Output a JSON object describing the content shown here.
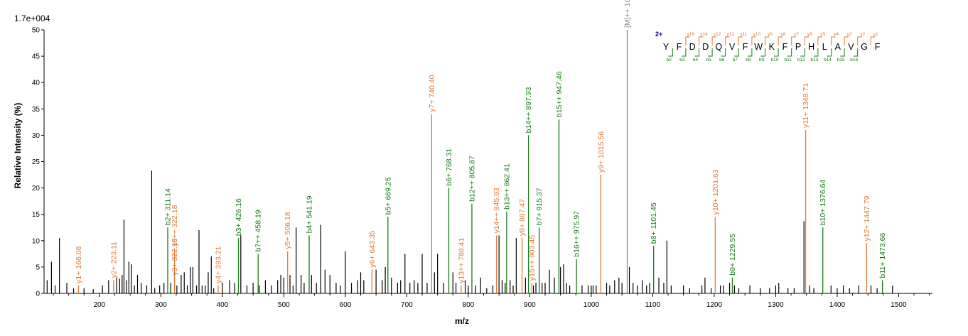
{
  "chart_data": {
    "type": "bar",
    "subtype": "mass-spectrum",
    "scale_label": "1.7e+004",
    "xlabel": "m/z",
    "ylabel": "Relative   Intensity (%)",
    "xlim": [
      110,
      1555
    ],
    "ylim": [
      0,
      50
    ],
    "x_ticks": [
      200,
      300,
      400,
      500,
      600,
      700,
      800,
      900,
      1000,
      1100,
      1200,
      1300,
      1400,
      1500
    ],
    "y_ticks": [
      0,
      5,
      10,
      15,
      20,
      25,
      30,
      35,
      40,
      45,
      50
    ],
    "colors": {
      "y_ion": "#e07b39",
      "b_ion": "#1a7a1a",
      "precursor": "#888888",
      "unassigned": "#000000",
      "charge": "#000080"
    },
    "annotated_peaks": [
      {
        "label": "y1+ 166.06",
        "mz": 166.06,
        "intensity": 1.5,
        "ion": "y"
      },
      {
        "label": "y2+ 223.11",
        "mz": 223.11,
        "intensity": 2.5,
        "ion": "y"
      },
      {
        "label": "b2+ 311.14",
        "mz": 311.14,
        "intensity": 12.5,
        "ion": "b"
      },
      {
        "label": "y3+ 322.18",
        "mz": 322.18,
        "intensity": 3.0,
        "ion": "y"
      },
      {
        "label": "y6++ 322.18",
        "mz": 322.18,
        "intensity": 8.5,
        "ion": "y"
      },
      {
        "label": "y4+ 393.21",
        "mz": 393.21,
        "intensity": 1.5,
        "ion": "y"
      },
      {
        "label": "b3+ 426.16",
        "mz": 426.16,
        "intensity": 10.5,
        "ion": "b"
      },
      {
        "label": "b7++ 458.19",
        "mz": 458.19,
        "intensity": 7.5,
        "ion": "b"
      },
      {
        "label": "y5+ 506.18",
        "mz": 506.18,
        "intensity": 8.0,
        "ion": "y"
      },
      {
        "label": "b4+ 541.19",
        "mz": 541.19,
        "intensity": 11.0,
        "ion": "b"
      },
      {
        "label": "y6+ 643.35",
        "mz": 643.35,
        "intensity": 4.5,
        "ion": "y"
      },
      {
        "label": "b5+ 669.25",
        "mz": 669.25,
        "intensity": 14.5,
        "ion": "b"
      },
      {
        "label": "y7+ 740.40",
        "mz": 740.4,
        "intensity": 34.0,
        "ion": "y"
      },
      {
        "label": "b6+ 768.31",
        "mz": 768.31,
        "intensity": 20.0,
        "ion": "b"
      },
      {
        "label": "y13++ 788.41",
        "mz": 788.41,
        "intensity": 1.5,
        "ion": "y"
      },
      {
        "label": "b12++ 805.87",
        "mz": 805.87,
        "intensity": 17.0,
        "ion": "b"
      },
      {
        "label": "y14++ 845.93",
        "mz": 845.93,
        "intensity": 11.0,
        "ion": "y"
      },
      {
        "label": "b13++ 862.41",
        "mz": 862.41,
        "intensity": 15.5,
        "ion": "b"
      },
      {
        "label": "y8+ 887.47",
        "mz": 887.47,
        "intensity": 10.5,
        "ion": "y"
      },
      {
        "label": "b14++ 897.93",
        "mz": 897.93,
        "intensity": 30.0,
        "ion": "b"
      },
      {
        "label": "y15++ 903.45",
        "mz": 903.45,
        "intensity": 2.0,
        "ion": "y"
      },
      {
        "label": "b7+ 915.37",
        "mz": 915.37,
        "intensity": 12.5,
        "ion": "b"
      },
      {
        "label": "b15++ 947.46",
        "mz": 947.46,
        "intensity": 33.0,
        "ion": "b"
      },
      {
        "label": "b16++ 975.97",
        "mz": 975.97,
        "intensity": 6.5,
        "ion": "b"
      },
      {
        "label": "y9+ 1015.56",
        "mz": 1015.56,
        "intensity": 22.5,
        "ion": "y"
      },
      {
        "label": "[M]++ 1058.51",
        "mz": 1058.51,
        "intensity": 50.0,
        "ion": "precursor"
      },
      {
        "label": "b8+ 1101.45",
        "mz": 1101.45,
        "intensity": 9.0,
        "ion": "b"
      },
      {
        "label": "y10+ 1201.63",
        "mz": 1201.63,
        "intensity": 14.5,
        "ion": "y"
      },
      {
        "label": "b9+ 1229.55",
        "mz": 1229.55,
        "intensity": 3.0,
        "ion": "b"
      },
      {
        "label": "y11+ 1348.71",
        "mz": 1348.71,
        "intensity": 31.0,
        "ion": "y"
      },
      {
        "label": "b10+ 1376.64",
        "mz": 1376.64,
        "intensity": 12.5,
        "ion": "b"
      },
      {
        "label": "y12+ 1447.79",
        "mz": 1447.79,
        "intensity": 9.5,
        "ion": "y"
      },
      {
        "label": "b11+ 1473.66",
        "mz": 1473.66,
        "intensity": 2.5,
        "ion": "b"
      }
    ],
    "unassigned_peaks": [
      [
        115,
        2.5
      ],
      [
        122,
        6.0
      ],
      [
        128,
        1.5
      ],
      [
        135,
        10.5
      ],
      [
        147,
        2.0
      ],
      [
        158,
        1.0
      ],
      [
        175,
        1.0
      ],
      [
        190,
        0.8
      ],
      [
        205,
        1.5
      ],
      [
        215,
        2.5
      ],
      [
        228,
        3.0
      ],
      [
        233,
        2.8
      ],
      [
        237,
        3.5
      ],
      [
        240,
        14.0
      ],
      [
        244,
        2.5
      ],
      [
        248,
        6.0
      ],
      [
        252,
        5.5
      ],
      [
        257,
        1.5
      ],
      [
        262,
        3.5
      ],
      [
        268,
        2.0
      ],
      [
        277,
        1.5
      ],
      [
        285,
        23.3
      ],
      [
        290,
        1.0
      ],
      [
        298,
        1.5
      ],
      [
        305,
        2.0
      ],
      [
        316,
        2.0
      ],
      [
        326,
        1.5
      ],
      [
        333,
        3.5
      ],
      [
        338,
        4.0
      ],
      [
        343,
        1.5
      ],
      [
        348,
        5.0
      ],
      [
        352,
        5.0
      ],
      [
        358,
        1.5
      ],
      [
        362,
        12.0
      ],
      [
        367,
        1.5
      ],
      [
        372,
        1.5
      ],
      [
        377,
        4.0
      ],
      [
        382,
        7.0
      ],
      [
        386,
        1.0
      ],
      [
        400,
        2.0
      ],
      [
        412,
        2.5
      ],
      [
        420,
        2.0
      ],
      [
        430,
        11.0
      ],
      [
        440,
        1.5
      ],
      [
        450,
        2.0
      ],
      [
        460,
        1.5
      ],
      [
        470,
        2.5
      ],
      [
        480,
        1.5
      ],
      [
        490,
        2.5
      ],
      [
        495,
        3.5
      ],
      [
        500,
        3.0
      ],
      [
        510,
        3.5
      ],
      [
        515,
        1.5
      ],
      [
        520,
        12.5
      ],
      [
        528,
        3.5
      ],
      [
        533,
        2.0
      ],
      [
        545,
        3.5
      ],
      [
        553,
        2.0
      ],
      [
        560,
        13.0
      ],
      [
        567,
        4.5
      ],
      [
        575,
        3.5
      ],
      [
        585,
        2.0
      ],
      [
        592,
        1.5
      ],
      [
        600,
        8.0
      ],
      [
        610,
        2.0
      ],
      [
        620,
        2.5
      ],
      [
        625,
        4.0
      ],
      [
        630,
        2.5
      ],
      [
        650,
        4.5
      ],
      [
        660,
        2.5
      ],
      [
        665,
        5.0
      ],
      [
        675,
        3.0
      ],
      [
        685,
        2.0
      ],
      [
        690,
        2.5
      ],
      [
        697,
        7.5
      ],
      [
        705,
        2.0
      ],
      [
        712,
        2.5
      ],
      [
        718,
        2.0
      ],
      [
        725,
        7.5
      ],
      [
        733,
        2.0
      ],
      [
        745,
        4.0
      ],
      [
        750,
        7.5
      ],
      [
        760,
        2.0
      ],
      [
        775,
        4.0
      ],
      [
        780,
        2.0
      ],
      [
        795,
        2.5
      ],
      [
        800,
        1.5
      ],
      [
        812,
        1.5
      ],
      [
        820,
        3.0
      ],
      [
        830,
        1.0
      ],
      [
        840,
        1.5
      ],
      [
        850,
        11.0
      ],
      [
        855,
        2.5
      ],
      [
        860,
        2.0
      ],
      [
        868,
        2.5
      ],
      [
        873,
        1.5
      ],
      [
        878,
        10.5
      ],
      [
        893,
        3.0
      ],
      [
        906,
        1.5
      ],
      [
        910,
        2.0
      ],
      [
        920,
        2.0
      ],
      [
        925,
        2.0
      ],
      [
        932,
        4.5
      ],
      [
        940,
        3.0
      ],
      [
        950,
        5.0
      ],
      [
        955,
        5.5
      ],
      [
        960,
        2.0
      ],
      [
        965,
        1.5
      ],
      [
        985,
        1.5
      ],
      [
        995,
        1.5
      ],
      [
        1000,
        1.5
      ],
      [
        1003,
        1.5
      ],
      [
        1008,
        1.5
      ],
      [
        1025,
        2.0
      ],
      [
        1030,
        1.5
      ],
      [
        1038,
        2.5
      ],
      [
        1045,
        3.0
      ],
      [
        1050,
        2.0
      ],
      [
        1062,
        5.0
      ],
      [
        1068,
        2.0
      ],
      [
        1075,
        1.5
      ],
      [
        1083,
        2.5
      ],
      [
        1090,
        1.5
      ],
      [
        1095,
        2.0
      ],
      [
        1110,
        3.0
      ],
      [
        1118,
        2.0
      ],
      [
        1123,
        10.0
      ],
      [
        1130,
        1.5
      ],
      [
        1150,
        1.5
      ],
      [
        1160,
        1.0
      ],
      [
        1180,
        1.5
      ],
      [
        1185,
        3.0
      ],
      [
        1195,
        1.0
      ],
      [
        1210,
        1.5
      ],
      [
        1215,
        1.5
      ],
      [
        1225,
        2.0
      ],
      [
        1233,
        1.5
      ],
      [
        1240,
        1.0
      ],
      [
        1258,
        1.5
      ],
      [
        1275,
        1.0
      ],
      [
        1290,
        1.0
      ],
      [
        1300,
        1.5
      ],
      [
        1305,
        2.0
      ],
      [
        1320,
        1.0
      ],
      [
        1330,
        1.0
      ],
      [
        1346,
        13.7
      ],
      [
        1355,
        1.5
      ],
      [
        1362,
        1.0
      ],
      [
        1390,
        1.5
      ],
      [
        1400,
        1.0
      ],
      [
        1410,
        1.5
      ],
      [
        1420,
        1.0
      ],
      [
        1435,
        1.5
      ],
      [
        1455,
        1.5
      ],
      [
        1465,
        1.0
      ],
      [
        1490,
        1.5
      ]
    ],
    "sequence_panel": {
      "charge": "2+",
      "residues": [
        "Y",
        "F",
        "D",
        "D",
        "Q",
        "V",
        "F",
        "W",
        "K",
        "F",
        "P",
        "H",
        "L",
        "A",
        "V",
        "G",
        "F"
      ],
      "y_ions": [
        "y16",
        "y14",
        "y12",
        "y12",
        "y11",
        "y10",
        "y9",
        "y8",
        "y7",
        "y6",
        "y5",
        "y4",
        "y2",
        "y2",
        "y1"
      ],
      "b_ions": [
        "b2",
        "b3",
        "b4",
        "b5",
        "b6",
        "b7",
        "b8",
        "b9",
        "b10",
        "b11",
        "b12",
        "b13",
        "b14",
        "b15",
        "b16"
      ]
    }
  }
}
